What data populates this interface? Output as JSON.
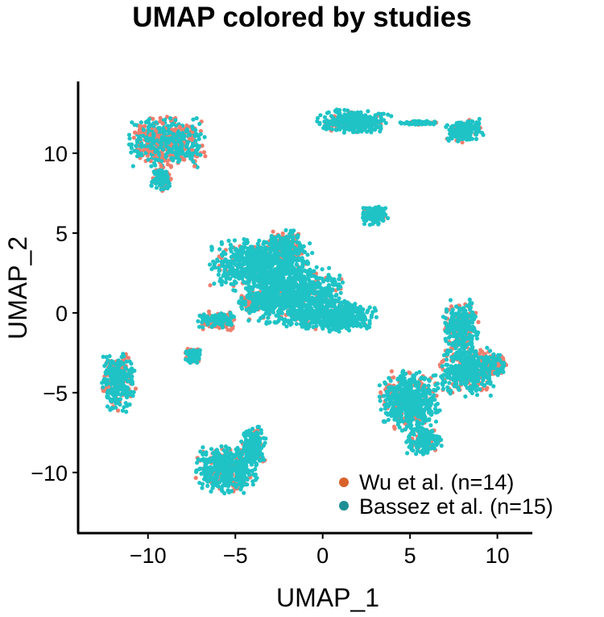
{
  "chart_data": {
    "type": "scatter",
    "title": "UMAP colored by studies",
    "xlabel": "UMAP_1",
    "ylabel": "UMAP_2",
    "xlim": [
      -14,
      12
    ],
    "ylim": [
      -13.8,
      14.5
    ],
    "xticks": [
      -10,
      -5,
      0,
      5,
      10
    ],
    "yticks": [
      -10,
      -5,
      0,
      5,
      10
    ],
    "xtick_labels": [
      "−10",
      "−5",
      "0",
      "5",
      "10"
    ],
    "ytick_labels": [
      "−10",
      "−5",
      "0",
      "5",
      "10"
    ],
    "grid": false,
    "legend_position": "bottom-right",
    "series": [
      {
        "name": "Wu et al. (n=14)",
        "color": "#F07E6E",
        "legend_color": "#D9622B"
      },
      {
        "name": "Bassez et al. (n=15)",
        "color": "#1FC3C6",
        "legend_color": "#1E8E95"
      }
    ],
    "clusters": [
      {
        "cx": -8.9,
        "cy": 10.7,
        "sx": 1.8,
        "sy": 1.3,
        "wu_share": 0.42
      },
      {
        "cx": -9.2,
        "cy": 8.4,
        "sx": 0.5,
        "sy": 0.6,
        "wu_share": 0.4
      },
      {
        "cx": 1.8,
        "cy": 12.0,
        "sx": 1.7,
        "sy": 0.6,
        "wu_share": 0.2
      },
      {
        "cx": 8.1,
        "cy": 11.4,
        "sx": 0.9,
        "sy": 0.6,
        "wu_share": 0.2
      },
      {
        "cx": 5.5,
        "cy": 11.9,
        "sx": 0.9,
        "sy": 0.1,
        "wu_share": 0.1
      },
      {
        "cx": 3.0,
        "cy": 6.1,
        "sx": 0.6,
        "sy": 0.5,
        "wu_share": 0.1
      },
      {
        "cx": -3.5,
        "cy": 3.0,
        "sx": 2.4,
        "sy": 1.3,
        "wu_share": 0.12
      },
      {
        "cx": -1.5,
        "cy": 1.0,
        "sx": 2.2,
        "sy": 1.5,
        "wu_share": 0.15
      },
      {
        "cx": 0.8,
        "cy": -0.2,
        "sx": 1.8,
        "sy": 0.8,
        "wu_share": 0.05
      },
      {
        "cx": -2.1,
        "cy": 4.2,
        "sx": 0.9,
        "sy": 0.8,
        "wu_share": 0.6
      },
      {
        "cx": -3.7,
        "cy": 0.7,
        "sx": 0.9,
        "sy": 0.5,
        "wu_share": 0.5
      },
      {
        "cx": -6.0,
        "cy": -0.5,
        "sx": 0.9,
        "sy": 0.5,
        "wu_share": 0.55
      },
      {
        "cx": -7.4,
        "cy": -2.7,
        "sx": 0.4,
        "sy": 0.4,
        "wu_share": 0.4
      },
      {
        "cx": -11.7,
        "cy": -4.3,
        "sx": 0.8,
        "sy": 1.5,
        "wu_share": 0.35
      },
      {
        "cx": -5.5,
        "cy": -9.8,
        "sx": 1.4,
        "sy": 1.2,
        "wu_share": 0.2
      },
      {
        "cx": -4.0,
        "cy": -8.3,
        "sx": 0.6,
        "sy": 1.0,
        "wu_share": 0.1
      },
      {
        "cx": 5.0,
        "cy": -5.5,
        "sx": 1.4,
        "sy": 1.5,
        "wu_share": 0.22
      },
      {
        "cx": 5.8,
        "cy": -8.0,
        "sx": 0.8,
        "sy": 0.7,
        "wu_share": 0.25
      },
      {
        "cx": 8.2,
        "cy": -3.6,
        "sx": 1.3,
        "sy": 1.3,
        "wu_share": 0.3
      },
      {
        "cx": 7.9,
        "cy": -0.8,
        "sx": 0.8,
        "sy": 1.3,
        "wu_share": 0.3
      },
      {
        "cx": 9.8,
        "cy": -3.2,
        "sx": 0.6,
        "sy": 0.6,
        "wu_share": 0.6
      }
    ]
  }
}
